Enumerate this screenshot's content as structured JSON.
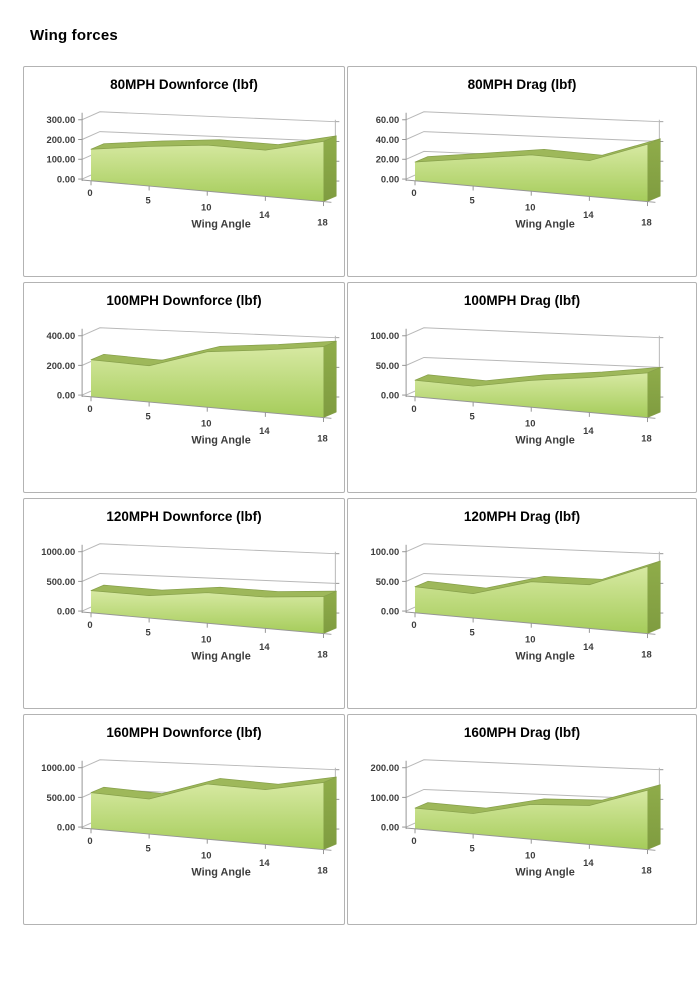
{
  "page": {
    "title": "Wing forces"
  },
  "colors": {
    "area_front_top": "#d7e9a2",
    "area_front_bottom": "#a5cc5a",
    "area_ribbon": "#9eb85a",
    "area_ribbon_edge": "#87a04b",
    "area_side": "#8fac4a",
    "area_side_dark": "#7f9c40",
    "gridline": "#b8b8b8",
    "axis_line": "#969696",
    "tick_text": "#3d3d3d",
    "title_text": "#000000",
    "chart_border": "#b3b3b3"
  },
  "chart_data": [
    {
      "type": "area",
      "title": "80MPH Downforce (lbf)",
      "xlabel": "Wing Angle",
      "x": [
        0,
        5,
        10,
        14,
        18
      ],
      "values": [
        160,
        180,
        190,
        175,
        210
      ],
      "ylim": [
        0,
        300
      ],
      "yticks": [
        0,
        100,
        200,
        300
      ],
      "ytick_format": "2dp",
      "grid": true,
      "legend": "none"
    },
    {
      "type": "area",
      "title": "80MPH Drag (lbf)",
      "xlabel": "Wing Angle",
      "x": [
        0,
        5,
        10,
        14,
        18
      ],
      "values": [
        19,
        25,
        30,
        27,
        40
      ],
      "ylim": [
        0,
        60
      ],
      "yticks": [
        0,
        20,
        40,
        60
      ],
      "ytick_format": "2dp",
      "grid": true,
      "legend": "none"
    },
    {
      "type": "area",
      "title": "100MPH Downforce (lbf)",
      "xlabel": "Wing Angle",
      "x": [
        0,
        5,
        10,
        14,
        18
      ],
      "values": [
        250,
        220,
        305,
        315,
        330
      ],
      "ylim": [
        0,
        400
      ],
      "yticks": [
        0,
        200,
        400
      ],
      "ytick_format": "2dp",
      "grid": true,
      "legend": "none"
    },
    {
      "type": "area",
      "title": "100MPH Drag (lbf)",
      "xlabel": "Wing Angle",
      "x": [
        0,
        5,
        10,
        14,
        18
      ],
      "values": [
        28,
        24,
        37,
        44,
        52
      ],
      "ylim": [
        0,
        100
      ],
      "yticks": [
        0,
        50,
        100
      ],
      "ytick_format": "2dp",
      "grid": true,
      "legend": "none"
    },
    {
      "type": "area",
      "title": "120MPH Downforce (lbf)",
      "xlabel": "Wing Angle",
      "x": [
        0,
        5,
        10,
        14,
        18
      ],
      "values": [
        375,
        340,
        420,
        395,
        430
      ],
      "ylim": [
        0,
        1000
      ],
      "yticks": [
        0,
        500,
        1000
      ],
      "ytick_format": "2dp",
      "grid": true,
      "legend": "none"
    },
    {
      "type": "area",
      "title": "120MPH Drag (lbf)",
      "xlabel": "Wing Angle",
      "x": [
        0,
        5,
        10,
        14,
        18
      ],
      "values": [
        44,
        37,
        57,
        55,
        78
      ],
      "ylim": [
        0,
        100
      ],
      "yticks": [
        0,
        50,
        100
      ],
      "ytick_format": "2dp",
      "grid": true,
      "legend": "none"
    },
    {
      "type": "area",
      "title": "160MPH Downforce (lbf)",
      "xlabel": "Wing Angle",
      "x": [
        0,
        5,
        10,
        14,
        18
      ],
      "values": [
        610,
        530,
        760,
        690,
        780
      ],
      "ylim": [
        0,
        1000
      ],
      "yticks": [
        0,
        500,
        1000
      ],
      "ytick_format": "2dp",
      "grid": true,
      "legend": "none"
    },
    {
      "type": "area",
      "title": "160MPH Drag (lbf)",
      "xlabel": "Wing Angle",
      "x": [
        0,
        5,
        10,
        14,
        18
      ],
      "values": [
        70,
        62,
        96,
        98,
        138
      ],
      "ylim": [
        0,
        200
      ],
      "yticks": [
        0,
        100,
        200
      ],
      "ytick_format": "2dp",
      "grid": true,
      "legend": "none"
    }
  ]
}
